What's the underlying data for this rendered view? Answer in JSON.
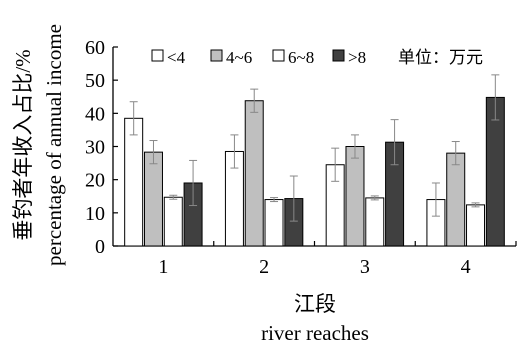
{
  "chart_data": {
    "type": "bar",
    "categories": [
      "1",
      "2",
      "3",
      "4"
    ],
    "series": [
      {
        "name": "<4",
        "values": [
          38.5,
          28.5,
          24.5,
          14
        ],
        "errors": [
          5.0,
          5.0,
          5.0,
          5.0
        ],
        "color": "#ffffff"
      },
      {
        "name": "4~6",
        "values": [
          28.3,
          43.8,
          30.0,
          28.0
        ],
        "errors": [
          3.5,
          3.5,
          3.5,
          3.5
        ],
        "color": "#bfbfbf"
      },
      {
        "name": "6~8",
        "values": [
          14.7,
          14.0,
          14.5,
          12.4
        ],
        "errors": [
          0.6,
          0.6,
          0.6,
          0.6
        ],
        "color": "#ffffff"
      },
      {
        "name": ">8",
        "values": [
          19.0,
          14.3,
          31.3,
          44.8
        ],
        "errors": [
          6.8,
          6.8,
          6.8,
          6.8
        ],
        "color": "#404040"
      }
    ],
    "ylim": [
      0,
      60
    ],
    "yticks": [
      "0",
      "10",
      "20",
      "30",
      "40",
      "50",
      "60"
    ],
    "ylabel_cn": "垂钓者年收入占比/%",
    "ylabel_en": "percentage of annual income",
    "xlabel_cn": "江段",
    "xlabel_en": "river reaches",
    "unit_note": "单位：万元",
    "legend_position": "top"
  }
}
